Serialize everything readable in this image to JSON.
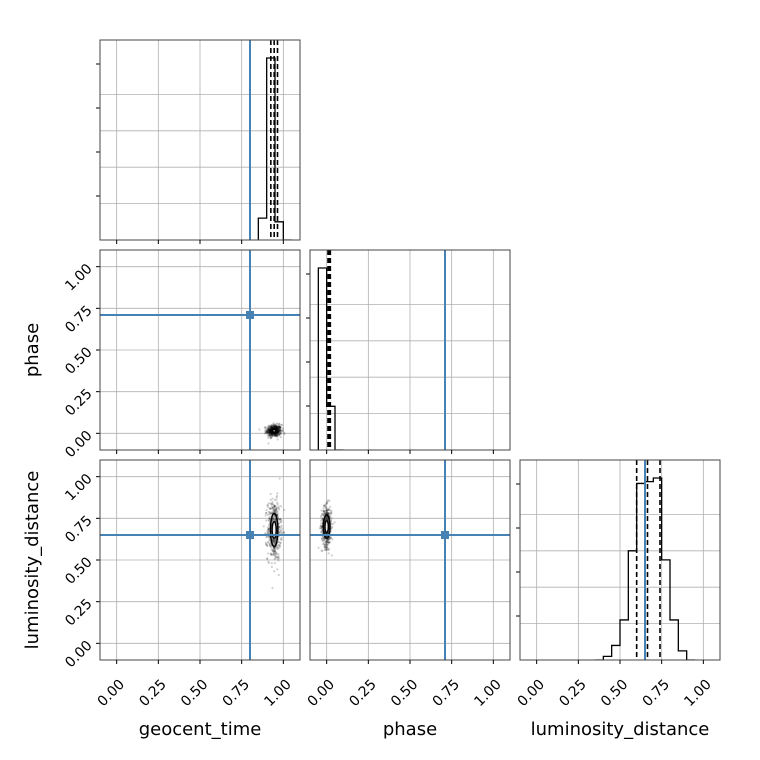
{
  "chart_data": {
    "type": "corner",
    "parameters": [
      "geocent_time",
      "phase",
      "luminosity_distance"
    ],
    "truths": {
      "geocent_time": 0.8,
      "phase": 0.71,
      "luminosity_distance": 0.65
    },
    "truth_color": "#4682b4",
    "axis_range": [
      -0.1,
      1.1
    ],
    "tick_values": [
      0.0,
      0.25,
      0.5,
      0.75,
      1.0
    ],
    "tick_labels": [
      "0.00",
      "0.25",
      "0.50",
      "0.75",
      "1.00"
    ],
    "grid": true,
    "histograms": [
      {
        "parameter": "geocent_time",
        "edges": [
          0.85,
          0.9,
          0.95,
          1.0,
          1.05
        ],
        "counts": [
          0.12,
          1.0,
          0.1,
          0.0
        ],
        "quantiles": [
          0.925,
          0.945,
          0.965
        ]
      },
      {
        "parameter": "phase",
        "edges": [
          -0.05,
          0.0,
          0.05,
          0.1
        ],
        "counts": [
          1.0,
          0.24,
          0.0
        ],
        "quantiles": [
          0.008,
          0.015,
          0.022
        ]
      },
      {
        "parameter": "luminosity_distance",
        "edges": [
          0.35,
          0.4,
          0.45,
          0.5,
          0.55,
          0.6,
          0.65,
          0.7,
          0.75,
          0.8,
          0.85,
          0.9,
          0.95
        ],
        "counts": [
          0.0,
          0.02,
          0.08,
          0.22,
          0.6,
          0.97,
          0.98,
          1.0,
          0.55,
          0.22,
          0.05,
          0.0
        ],
        "quantiles": [
          0.6,
          0.665,
          0.74
        ]
      }
    ],
    "scatter_2d": [
      {
        "x": "geocent_time",
        "y": "phase",
        "center": [
          0.945,
          0.015
        ],
        "spread": [
          0.022,
          0.018
        ],
        "contours": [
          [
            0.01,
            0.007
          ],
          [
            0.02,
            0.013
          ]
        ]
      },
      {
        "x": "geocent_time",
        "y": "luminosity_distance",
        "center": [
          0.945,
          0.68
        ],
        "spread": [
          0.02,
          0.09
        ],
        "contours": [
          [
            0.012,
            0.05
          ],
          [
            0.022,
            0.1
          ]
        ]
      },
      {
        "x": "phase",
        "y": "luminosity_distance",
        "center": [
          0.0,
          0.7
        ],
        "spread": [
          0.015,
          0.06
        ],
        "contours": [
          [
            0.01,
            0.035
          ],
          [
            0.02,
            0.07
          ]
        ]
      }
    ]
  }
}
